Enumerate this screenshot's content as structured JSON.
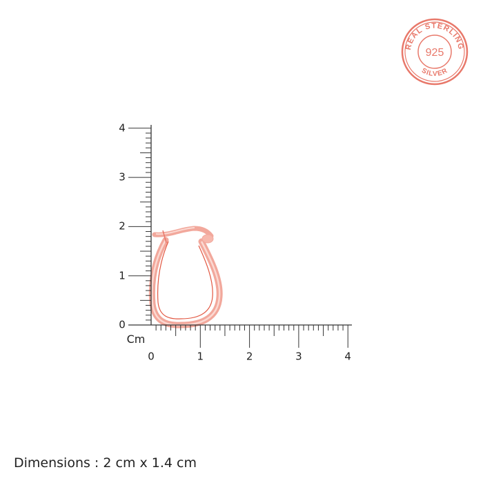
{
  "seal": {
    "top_text": "REAL STERLING",
    "center_text": "925",
    "bottom_text": "SILVER",
    "color": "#e8786a"
  },
  "ruler": {
    "unit_label": "Cm",
    "x_ticks": [
      "0",
      "1",
      "2",
      "3",
      "4"
    ],
    "y_ticks": [
      "0",
      "1",
      "2",
      "3",
      "4"
    ],
    "range_cm": [
      0,
      4
    ],
    "minor_step_cm": 0.1,
    "color": "#333333"
  },
  "product": {
    "name": "earring",
    "color": "#f2a89c",
    "width_cm": 1.4,
    "height_cm": 2
  },
  "dimensions": "Dimensions : 2 cm x 1.4 cm"
}
